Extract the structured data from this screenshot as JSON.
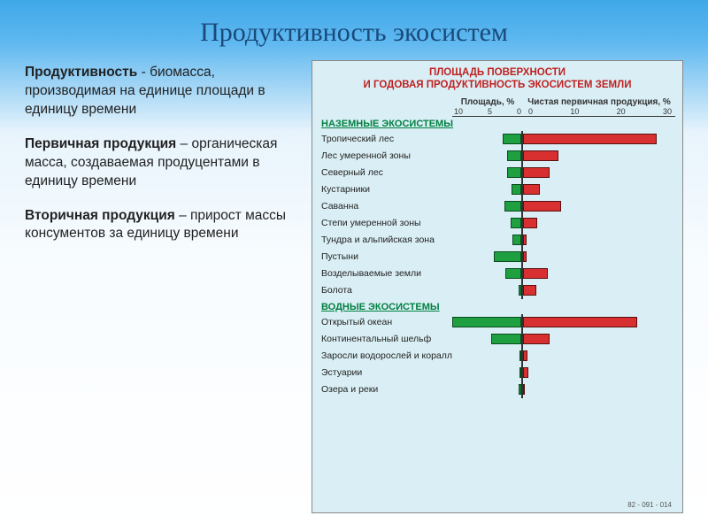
{
  "title": "Продуктивность экосистем",
  "definitions": [
    {
      "term": "Продуктивность",
      "text": " - биомасса, производимая на единице площади в единицу времени"
    },
    {
      "term": "Первичная продукция",
      "text": " – органическая масса, создаваемая продуцентами в единицу времени"
    },
    {
      "term": "Вторичная продукция",
      "text": " – прирост массы консументов за единицу времени"
    }
  ],
  "chart": {
    "title_line1": "ПЛОЩАДЬ ПОВЕРХНОСТИ",
    "title_line2": "И ГОДОВАЯ ПРОДУКТИВНОСТЬ ЭКОСИСТЕМ ЗЕМЛИ",
    "left_axis_label": "Площадь, %",
    "right_axis_label": "Чистая первичная продукция, %",
    "left_ticks": [
      10,
      5,
      0
    ],
    "right_ticks": [
      0,
      10,
      20,
      30
    ],
    "left_max": 12,
    "right_max": 32,
    "bar_left_color": "#1ea040",
    "bar_right_color": "#d83030",
    "background": "#daeff5",
    "sections": [
      {
        "name": "НАЗЕМНЫЕ ЭКОСИСТЕМЫ",
        "items": [
          {
            "label": "Тропический лес",
            "area": 3.3,
            "prod": 28
          },
          {
            "label": "Лес умеренной зоны",
            "area": 2.4,
            "prod": 7.5
          },
          {
            "label": "Северный лес",
            "area": 2.4,
            "prod": 5.5
          },
          {
            "label": "Кустарники",
            "area": 1.7,
            "prod": 3.5
          },
          {
            "label": "Саванна",
            "area": 2.9,
            "prod": 8
          },
          {
            "label": "Степи умеренной зоны",
            "area": 1.8,
            "prod": 3
          },
          {
            "label": "Тундра и альпийская зона",
            "area": 1.6,
            "prod": 0.7
          },
          {
            "label": "Пустыни",
            "area": 4.7,
            "prod": 0.8
          },
          {
            "label": "Возделываемые земли",
            "area": 2.7,
            "prod": 5.2
          },
          {
            "label": "Болота",
            "area": 0.4,
            "prod": 2.8
          }
        ]
      },
      {
        "name": "ВОДНЫЕ ЭКОСИСТЕМЫ",
        "items": [
          {
            "label": "Открытый океан",
            "area": 12,
            "prod": 24
          },
          {
            "label": "Континентальный шельф",
            "area": 5.2,
            "prod": 5.5
          },
          {
            "label": "Заросли водорослей и кораллы",
            "area": 0.15,
            "prod": 0.9
          },
          {
            "label": "Эстуарии",
            "area": 0.3,
            "prod": 1.2
          },
          {
            "label": "Озера и реки",
            "area": 0.4,
            "prod": 0.3
          }
        ]
      }
    ],
    "footer_id": "82 - 091 - 014"
  }
}
